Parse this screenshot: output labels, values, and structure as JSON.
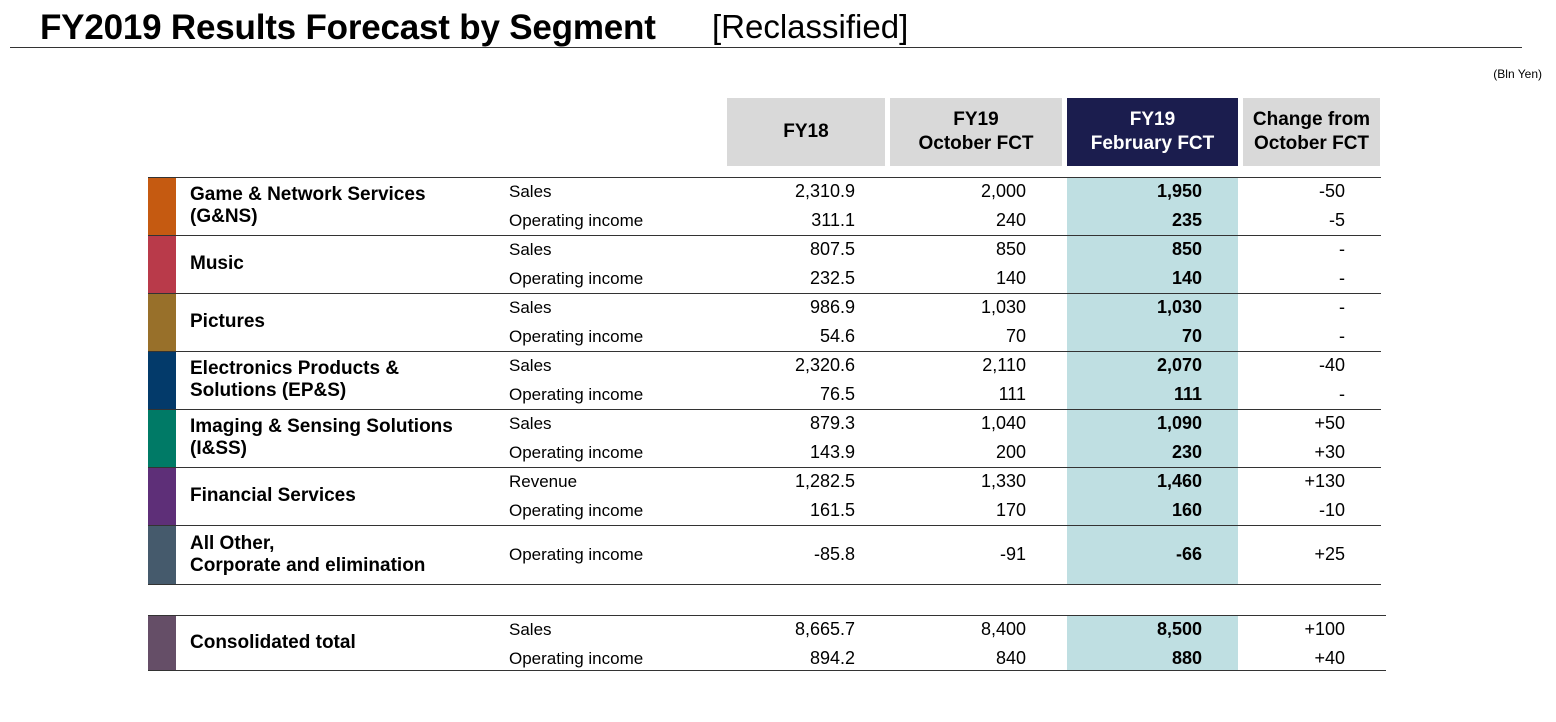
{
  "title": "FY2019 Results Forecast by Segment",
  "subtitle": "[Reclassified]",
  "units": "(Bln Yen)",
  "columns": [
    [
      "FY18"
    ],
    [
      "FY19",
      "October FCT"
    ],
    [
      "FY19",
      "February FCT"
    ],
    [
      "Change from",
      "October FCT"
    ]
  ],
  "colors": {
    "header_bg": "#d9d9d9",
    "header_highlight_bg": "#1b1d4e",
    "highlight_column_bg": "#bfdfe2"
  },
  "segments": [
    {
      "name": [
        "Game & Network Services",
        "(G&NS)"
      ],
      "color": "#c55a11",
      "rows": [
        {
          "metric": "Sales",
          "values": [
            "2,310.9",
            "2,000",
            "1,950",
            "-50"
          ]
        },
        {
          "metric": "Operating income",
          "values": [
            "311.1",
            "240",
            "235",
            "-5"
          ]
        }
      ]
    },
    {
      "name": [
        "Music"
      ],
      "color": "#b93a4a",
      "rows": [
        {
          "metric": "Sales",
          "values": [
            "807.5",
            "850",
            "850",
            "-"
          ]
        },
        {
          "metric": "Operating income",
          "values": [
            "232.5",
            "140",
            "140",
            "-"
          ]
        }
      ]
    },
    {
      "name": [
        "Pictures"
      ],
      "color": "#98702a",
      "rows": [
        {
          "metric": "Sales",
          "values": [
            "986.9",
            "1,030",
            "1,030",
            "-"
          ]
        },
        {
          "metric": "Operating income",
          "values": [
            "54.6",
            "70",
            "70",
            "-"
          ]
        }
      ]
    },
    {
      "name": [
        "Electronics Products &",
        "Solutions (EP&S)"
      ],
      "color": "#033a6a",
      "rows": [
        {
          "metric": "Sales",
          "values": [
            "2,320.6",
            "2,110",
            "2,070",
            "-40"
          ]
        },
        {
          "metric": "Operating income",
          "values": [
            "76.5",
            "111",
            "111",
            "-"
          ]
        }
      ]
    },
    {
      "name": [
        "Imaging & Sensing Solutions",
        "(I&SS)"
      ],
      "color": "#007a66",
      "rows": [
        {
          "metric": "Sales",
          "values": [
            "879.3",
            "1,040",
            "1,090",
            "+50"
          ]
        },
        {
          "metric": "Operating income",
          "values": [
            "143.9",
            "200",
            "230",
            "+30"
          ]
        }
      ]
    },
    {
      "name": [
        "Financial Services"
      ],
      "color": "#5e2f78",
      "rows": [
        {
          "metric": "Revenue",
          "values": [
            "1,282.5",
            "1,330",
            "1,460",
            "+130"
          ]
        },
        {
          "metric": "Operating income",
          "values": [
            "161.5",
            "170",
            "160",
            "-10"
          ]
        }
      ]
    },
    {
      "name": [
        "All Other,",
        "Corporate and elimination"
      ],
      "color": "#455a6c",
      "rows": [
        {
          "metric": "Operating income",
          "values": [
            "-85.8",
            "-91",
            "-66",
            "+25"
          ]
        }
      ]
    },
    {
      "name": [
        "Consolidated total"
      ],
      "color": "#654e67",
      "rows": [
        {
          "metric": "Sales",
          "values": [
            "8,665.7",
            "8,400",
            "8,500",
            "+100"
          ]
        },
        {
          "metric": "Operating income",
          "values": [
            "894.2",
            "840",
            "880",
            "+40"
          ]
        }
      ]
    }
  ]
}
